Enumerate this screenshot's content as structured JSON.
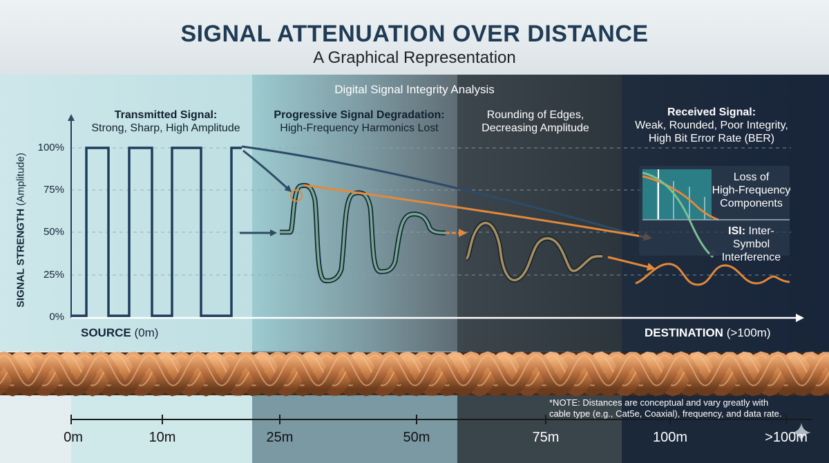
{
  "header": {
    "title": "SIGNAL ATTENUATION OVER DISTANCE",
    "subtitle": "A Graphical Representation",
    "section_label": "Digital Signal Integrity Analysis"
  },
  "annotations": {
    "transmitted": {
      "title": "Transmitted Signal:",
      "detail": "Strong, Sharp, High Amplitude"
    },
    "degradation": {
      "title": "Progressive Signal Degradation:",
      "detail": "High-Frequency Harmonics Lost"
    },
    "rounding": {
      "line1": "Rounding of Edges,",
      "line2": "Decreasing Amplitude"
    },
    "received": {
      "title": "Received Signal:",
      "line1": "Weak, Rounded, Poor Integrity,",
      "line2": "High Bit Error Rate (BER)"
    }
  },
  "inset": {
    "loss_line1": "Loss of",
    "loss_line2": "High-Frequency",
    "loss_line3": "Components",
    "isi_bold": "ISI:",
    "isi_rest": "Inter-Symbol",
    "isi_line2": "Interference"
  },
  "axis": {
    "y_label_bold": "SIGNAL STRENGTH",
    "y_label_rest": "(Amplitude)",
    "y_ticks": [
      "100%",
      "75%",
      "50%",
      "25%",
      "0%"
    ],
    "source_bold": "SOURCE",
    "source_rest": "(0m)",
    "destination_bold": "DESTINATION",
    "destination_rest": "(>100m)"
  },
  "distance_scale": [
    "0m",
    "10m",
    "25m",
    "50m",
    "75m",
    "100m",
    ">100m"
  ],
  "note": {
    "line1": "*NOTE: Distances are conceptual and vary greatly with",
    "line2": "cable type (e.g., Cat5e, Coaxial), frequency, and data rate."
  },
  "colors": {
    "square_wave": "#1e3d5c",
    "degraded_wave": "#7aa88f",
    "weak_wave": "#e3893a",
    "copper": "#b8703f"
  }
}
